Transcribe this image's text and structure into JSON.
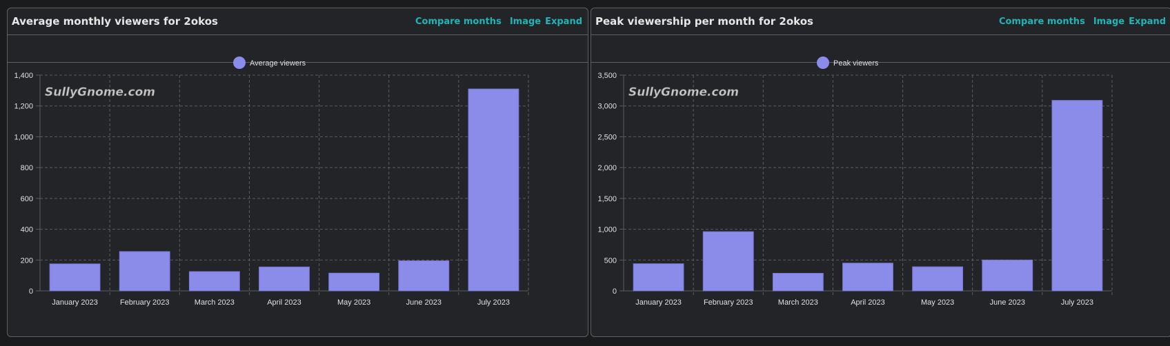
{
  "colors": {
    "bar": "#8b8bea",
    "bar_stroke": "#7878d8",
    "grid": "#5a5b5f",
    "tick_text": "#e0e0e0",
    "link": "#1fb5b5",
    "watermark": "#c8c8c8"
  },
  "panels": [
    {
      "title": "Average monthly viewers for 2okos",
      "links": {
        "compare": "Compare months",
        "image": "Image",
        "expand": "Expand"
      },
      "watermark": "SullyGnome.com",
      "chart_data": {
        "type": "bar",
        "title": "Average monthly viewers for 2okos",
        "categories": [
          "January 2023",
          "February 2023",
          "March 2023",
          "April 2023",
          "May 2023",
          "June 2023",
          "July 2023"
        ],
        "series": [
          {
            "name": "Average viewers",
            "values": [
              175,
              255,
              125,
              155,
              115,
              195,
              1310
            ]
          }
        ],
        "ylim": [
          0,
          1400
        ],
        "yticks": [
          0,
          200,
          400,
          600,
          800,
          1000,
          1200,
          1400
        ],
        "ytick_labels": [
          "0",
          "200",
          "400",
          "600",
          "800",
          "1,000",
          "1,200",
          "1,400"
        ],
        "legend_position": "top-center",
        "grid": true
      }
    },
    {
      "title": "Peak viewership per month for 2okos",
      "links": {
        "compare": "Compare months",
        "image": "Image",
        "expand": "Expand"
      },
      "watermark": "SullyGnome.com",
      "chart_data": {
        "type": "bar",
        "title": "Peak viewership per month for 2okos",
        "categories": [
          "January 2023",
          "February 2023",
          "March 2023",
          "April 2023",
          "May 2023",
          "June 2023",
          "July 2023"
        ],
        "series": [
          {
            "name": "Peak viewers",
            "values": [
              440,
              960,
              285,
              450,
              390,
              500,
              3090
            ]
          }
        ],
        "ylim": [
          0,
          3500
        ],
        "yticks": [
          0,
          500,
          1000,
          1500,
          2000,
          2500,
          3000,
          3500
        ],
        "ytick_labels": [
          "0",
          "500",
          "1,000",
          "1,500",
          "2,000",
          "2,500",
          "3,000",
          "3,500"
        ],
        "legend_position": "top-center",
        "grid": true
      }
    }
  ]
}
